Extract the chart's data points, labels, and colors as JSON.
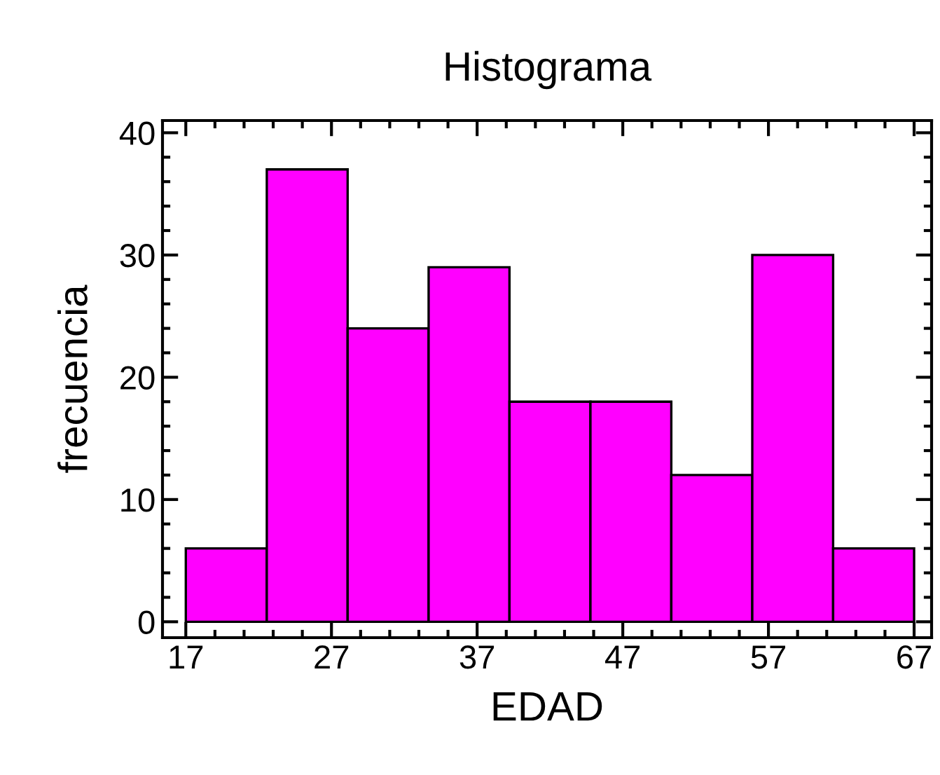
{
  "chart_data": {
    "type": "histogram",
    "title": "Histograma",
    "xlabel": "EDAD",
    "ylabel": "frecuencia",
    "bins": [
      17,
      22.56,
      28.11,
      33.67,
      39.22,
      44.78,
      50.33,
      55.89,
      61.44,
      67
    ],
    "values": [
      6,
      37,
      24,
      29,
      18,
      18,
      12,
      30,
      6
    ],
    "color": "#ff00ff",
    "xlim": [
      15.4,
      68.2
    ],
    "xticks": [
      17,
      27,
      37,
      47,
      57,
      67
    ],
    "ylim": [
      -1.3,
      41
    ],
    "yticks": [
      0,
      10,
      20,
      30,
      40
    ],
    "grid": false
  }
}
